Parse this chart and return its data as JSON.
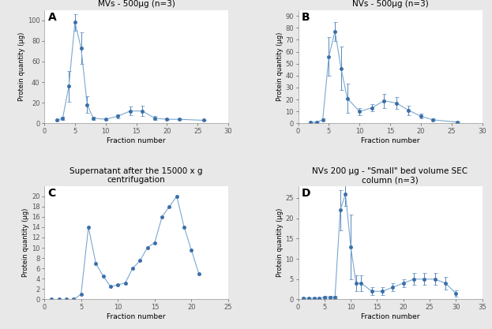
{
  "panel_A": {
    "title": "MVs - 500μg (n=3)",
    "xlabel": "Fraction number",
    "ylabel": "Protein quantity (μg)",
    "xlim": [
      0,
      30
    ],
    "ylim": [
      0,
      110
    ],
    "yticks": [
      0,
      20,
      40,
      60,
      80,
      100
    ],
    "xticks": [
      0,
      5,
      10,
      15,
      20,
      25,
      30
    ],
    "x": [
      2,
      3,
      4,
      5,
      6,
      7,
      8,
      10,
      12,
      14,
      16,
      18,
      20,
      22,
      26
    ],
    "y": [
      3,
      5,
      36,
      98,
      73,
      18,
      5,
      4,
      7,
      12,
      12,
      5,
      4,
      4,
      3
    ],
    "yerr": [
      0.5,
      1.5,
      15,
      8,
      15,
      8,
      1.5,
      1,
      2,
      4,
      5,
      2,
      1,
      1,
      0.5
    ]
  },
  "panel_B": {
    "title": "NVs - 500μg (n=3)",
    "xlabel": "Fraction number",
    "ylabel": "Protein quantity (μg)",
    "xlim": [
      0,
      30
    ],
    "ylim": [
      0,
      95
    ],
    "yticks": [
      0,
      10,
      20,
      30,
      40,
      50,
      60,
      70,
      80,
      90
    ],
    "xticks": [
      0,
      5,
      10,
      15,
      20,
      25,
      30
    ],
    "x": [
      2,
      3,
      4,
      5,
      6,
      7,
      8,
      10,
      12,
      14,
      16,
      18,
      20,
      22,
      26
    ],
    "y": [
      1,
      1,
      3,
      56,
      77,
      46,
      21,
      10,
      13,
      19,
      17,
      11,
      6,
      3,
      1
    ],
    "yerr": [
      0.3,
      0.3,
      1,
      16,
      8,
      18,
      12,
      3,
      3,
      6,
      5,
      4,
      2,
      1,
      0.3
    ]
  },
  "panel_C": {
    "title": "Supernatant after the 15000 x g\ncentrifugation",
    "xlabel": "Fraction number",
    "ylabel": "Protein quantity (μg)",
    "xlim": [
      0,
      25
    ],
    "ylim": [
      0,
      22
    ],
    "yticks": [
      0,
      2,
      4,
      6,
      8,
      10,
      12,
      14,
      16,
      18,
      20
    ],
    "xticks": [
      0,
      5,
      10,
      15,
      20,
      25
    ],
    "x": [
      1,
      2,
      3,
      4,
      5,
      6,
      7,
      8,
      9,
      10,
      11,
      12,
      13,
      14,
      15,
      16,
      17,
      18,
      19,
      20,
      21
    ],
    "y": [
      0,
      0,
      0,
      0,
      1,
      14,
      7,
      4.5,
      2.5,
      2.8,
      3.2,
      6,
      7.5,
      10,
      11,
      16,
      18,
      20,
      14,
      9.5,
      5
    ],
    "yerr": null
  },
  "panel_D": {
    "title": "NVs 200 μg - \"Small\" bed volume SEC\ncolumn (n=3)",
    "xlabel": "Fraction number",
    "ylabel": "Protein quantity (μg)",
    "xlim": [
      0,
      35
    ],
    "ylim": [
      0,
      28
    ],
    "yticks": [
      0,
      5,
      10,
      15,
      20,
      25
    ],
    "xticks": [
      0,
      5,
      10,
      15,
      20,
      25,
      30,
      35
    ],
    "x": [
      1,
      2,
      3,
      4,
      5,
      6,
      7,
      8,
      9,
      10,
      11,
      12,
      14,
      16,
      18,
      20,
      22,
      24,
      26,
      28,
      30
    ],
    "y": [
      0.3,
      0.3,
      0.3,
      0.3,
      0.5,
      0.5,
      0.5,
      22,
      26,
      13,
      4,
      4,
      2,
      2,
      3,
      4,
      5,
      5,
      5,
      4,
      1.5
    ],
    "yerr": [
      0.2,
      0.2,
      0.2,
      0.2,
      0.3,
      0.3,
      0.3,
      5,
      3,
      8,
      2,
      2,
      1,
      1,
      1,
      1,
      1.5,
      1.5,
      1.5,
      1.5,
      0.8
    ]
  },
  "line_color": "#7BA7D0",
  "marker_color": "#3A6EA8",
  "fig_bg": "#E8E8E8",
  "panel_bg": "#FFFFFF"
}
